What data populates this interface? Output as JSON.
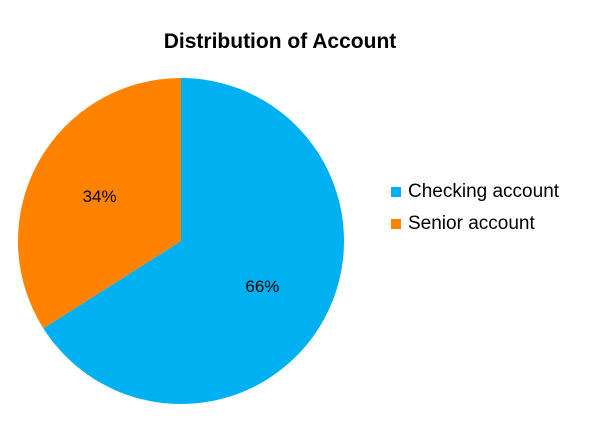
{
  "chart_data": {
    "type": "pie",
    "title": "Distribution of Account",
    "slices": [
      {
        "name": "Checking account",
        "value": 66,
        "label": "66%",
        "color": "#00B0F0"
      },
      {
        "name": "Senior account",
        "value": 34,
        "label": "34%",
        "color": "#FF8200"
      }
    ],
    "start_angle_deg": 0,
    "direction": "clockwise",
    "legend_position": "right"
  }
}
